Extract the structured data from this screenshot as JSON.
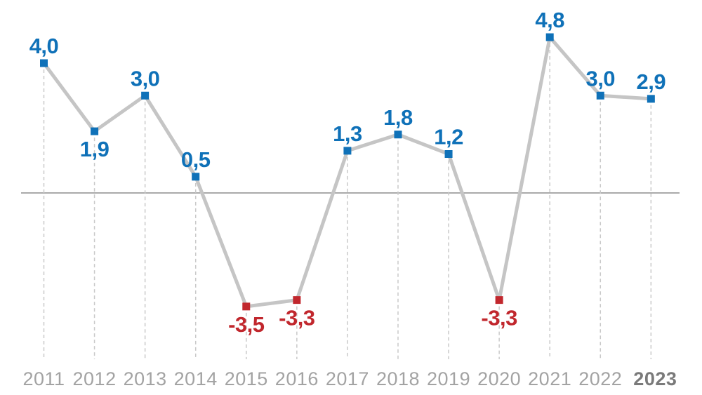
{
  "chart_data": {
    "type": "line",
    "title": "",
    "xlabel": "",
    "ylabel": "",
    "categories": [
      "2011",
      "2012",
      "2013",
      "2014",
      "2015",
      "2016",
      "2017",
      "2018",
      "2019",
      "2020",
      "2021",
      "2022",
      "2023"
    ],
    "values": [
      4.0,
      1.9,
      3.0,
      0.5,
      -3.5,
      -3.3,
      1.3,
      1.8,
      1.2,
      -3.3,
      4.8,
      3.0,
      2.9
    ],
    "point_labels": [
      "4,0",
      "1,9",
      "3,0",
      "0,5",
      "-3,5",
      "-3,3",
      "1,3",
      "1,8",
      "1,2",
      "-3,3",
      "4,8",
      "3,0",
      "2,9"
    ],
    "label_positions": [
      "above",
      "below",
      "above",
      "above",
      "below",
      "below",
      "above",
      "above",
      "above",
      "below",
      "above",
      "above",
      "above"
    ],
    "decimal_separator": ",",
    "highlighted_category": "2023",
    "ylim": [
      -4.5,
      5.5
    ],
    "zero_line": true,
    "gridlines": "dashed-vertical-per-point",
    "legend_position": "none",
    "colors": {
      "positive_value": "#0F71B8",
      "negative_value": "#C1272D",
      "line": "#C5C5C5",
      "zero_line": "#8E8E8E",
      "dashed_guide": "#C9C9C9",
      "year_label": "#A3A3A3",
      "year_label_highlighted": "#7A7A7A",
      "background": "#FFFFFF"
    }
  }
}
